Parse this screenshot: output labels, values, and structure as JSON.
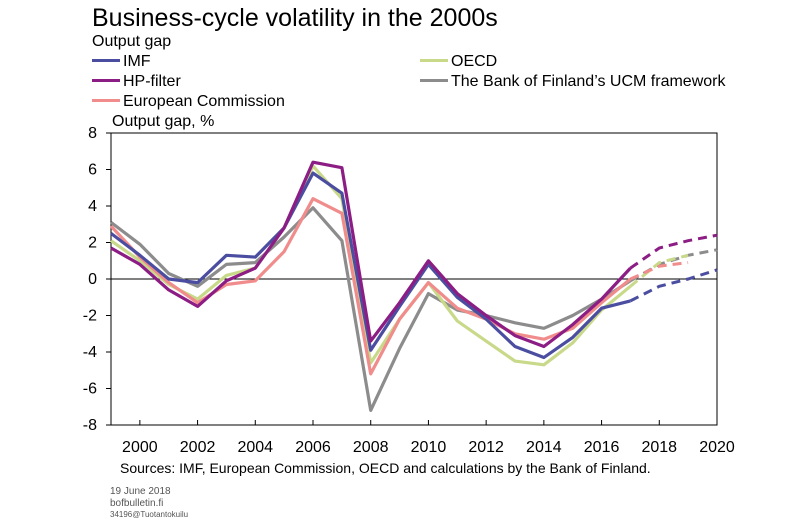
{
  "chart_data": {
    "type": "line",
    "title": "Business-cycle volatility in the 2000s",
    "subtitle": "Output gap",
    "ylabel": "Output gap, %",
    "xlim": [
      1999,
      2020
    ],
    "ylim": [
      -8,
      8
    ],
    "x_ticks": [
      2000,
      2002,
      2004,
      2006,
      2008,
      2010,
      2012,
      2014,
      2016,
      2018,
      2020
    ],
    "y_ticks": [
      -8,
      -6,
      -4,
      -2,
      0,
      2,
      4,
      6,
      8
    ],
    "grid": false,
    "legend_position": "top",
    "series": [
      {
        "name": "IMF",
        "color": "#4b4ea0",
        "x": [
          1999,
          2000,
          2001,
          2002,
          2003,
          2004,
          2005,
          2006,
          2007,
          2008,
          2009,
          2010,
          2011,
          2012,
          2013,
          2014,
          2015,
          2016,
          2017
        ],
        "values": [
          2.5,
          1.3,
          0.0,
          -0.2,
          1.3,
          1.2,
          2.8,
          5.8,
          4.7,
          -3.9,
          -1.5,
          0.8,
          -1.0,
          -2.2,
          -3.7,
          -4.3,
          -3.2,
          -1.6,
          -1.2
        ],
        "forecast_x": [
          2017,
          2018,
          2019,
          2020
        ],
        "forecast_values": [
          -1.2,
          -0.4,
          0.0,
          0.5
        ]
      },
      {
        "name": "HP-filter",
        "color": "#8c1d84",
        "x": [
          1999,
          2000,
          2001,
          2002,
          2003,
          2004,
          2005,
          2006,
          2007,
          2008,
          2009,
          2010,
          2011,
          2012,
          2013,
          2014,
          2015,
          2016,
          2017
        ],
        "values": [
          1.7,
          0.8,
          -0.6,
          -1.5,
          -0.1,
          0.6,
          2.8,
          6.4,
          6.1,
          -3.4,
          -1.3,
          1.0,
          -0.8,
          -2.0,
          -3.1,
          -3.7,
          -2.5,
          -1.1,
          0.6
        ],
        "forecast_x": [
          2017,
          2018,
          2019,
          2020
        ],
        "forecast_values": [
          0.6,
          1.7,
          2.1,
          2.4
        ]
      },
      {
        "name": "European Commission",
        "color": "#f08c8c",
        "x": [
          1999,
          2000,
          2001,
          2002,
          2003,
          2004,
          2005,
          2006,
          2007,
          2008,
          2009,
          2010,
          2011,
          2012,
          2013,
          2014,
          2015,
          2016,
          2017
        ],
        "values": [
          2.9,
          1.2,
          -0.2,
          -1.3,
          -0.3,
          -0.1,
          1.5,
          4.4,
          3.6,
          -5.2,
          -2.2,
          -0.2,
          -1.6,
          -2.2,
          -3.0,
          -3.3,
          -2.7,
          -1.3,
          0.0
        ],
        "forecast_x": [
          2017,
          2018,
          2019
        ],
        "forecast_values": [
          0.0,
          0.7,
          0.9
        ]
      },
      {
        "name": "OECD",
        "color": "#c9d98a",
        "x": [
          1999,
          2000,
          2001,
          2002,
          2003,
          2004,
          2005,
          2006,
          2007,
          2008,
          2009,
          2010,
          2011,
          2012,
          2013,
          2014,
          2015,
          2016,
          2017
        ],
        "values": [
          2.1,
          1.0,
          -0.3,
          -1.1,
          0.2,
          0.6,
          2.8,
          6.2,
          4.4,
          -4.6,
          -2.2,
          -0.2,
          -2.3,
          -3.4,
          -4.5,
          -4.7,
          -3.5,
          -1.7,
          -0.4
        ],
        "forecast_x": [
          2017,
          2018,
          2019
        ],
        "forecast_values": [
          -0.4,
          0.9,
          1.3
        ]
      },
      {
        "name": "The Bank of Finland’s UCM framework",
        "color": "#8c8c8c",
        "x": [
          1999,
          2000,
          2001,
          2002,
          2003,
          2004,
          2005,
          2006,
          2007,
          2008,
          2009,
          2010,
          2011,
          2012,
          2013,
          2014,
          2015,
          2016,
          2017
        ],
        "values": [
          3.1,
          1.9,
          0.3,
          -0.4,
          0.8,
          0.9,
          2.3,
          3.9,
          2.1,
          -7.2,
          -3.8,
          -0.8,
          -1.7,
          -2.0,
          -2.4,
          -2.7,
          -2.0,
          -1.1,
          -0.1
        ],
        "forecast_x": [
          2017,
          2018,
          2019,
          2020
        ],
        "forecast_values": [
          -0.1,
          0.8,
          1.3,
          1.6
        ]
      }
    ],
    "source": "Sources: IMF, European Commission, OECD and calculations by the Bank of Finland."
  },
  "footer": {
    "date": "19 June 2018",
    "site": "bofbulletin.fi",
    "code": "34196@Tuotantokuilu"
  }
}
